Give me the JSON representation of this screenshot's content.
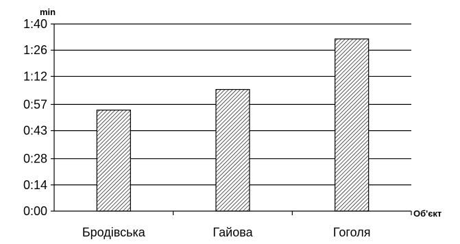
{
  "chart_data": {
    "type": "bar",
    "categories": [
      "Бродівська",
      "Гайова",
      "Гоголя"
    ],
    "values": [
      54,
      65,
      92
    ],
    "ylim": [
      0,
      100
    ],
    "yticks": [
      0,
      14,
      28,
      43,
      57,
      72,
      86,
      100
    ],
    "ytick_labels": [
      "0:00",
      "0:14",
      "0:28",
      "0:43",
      "0:57",
      "1:12",
      "1:26",
      "1:40"
    ],
    "ylabel": "min",
    "xlabel": "Об'єкт",
    "grid": true,
    "legend": "none",
    "bar_fill": "hatched",
    "colors": {
      "bar_stroke": "#000000",
      "hatch": "#000000",
      "background": "#ffffff"
    }
  }
}
